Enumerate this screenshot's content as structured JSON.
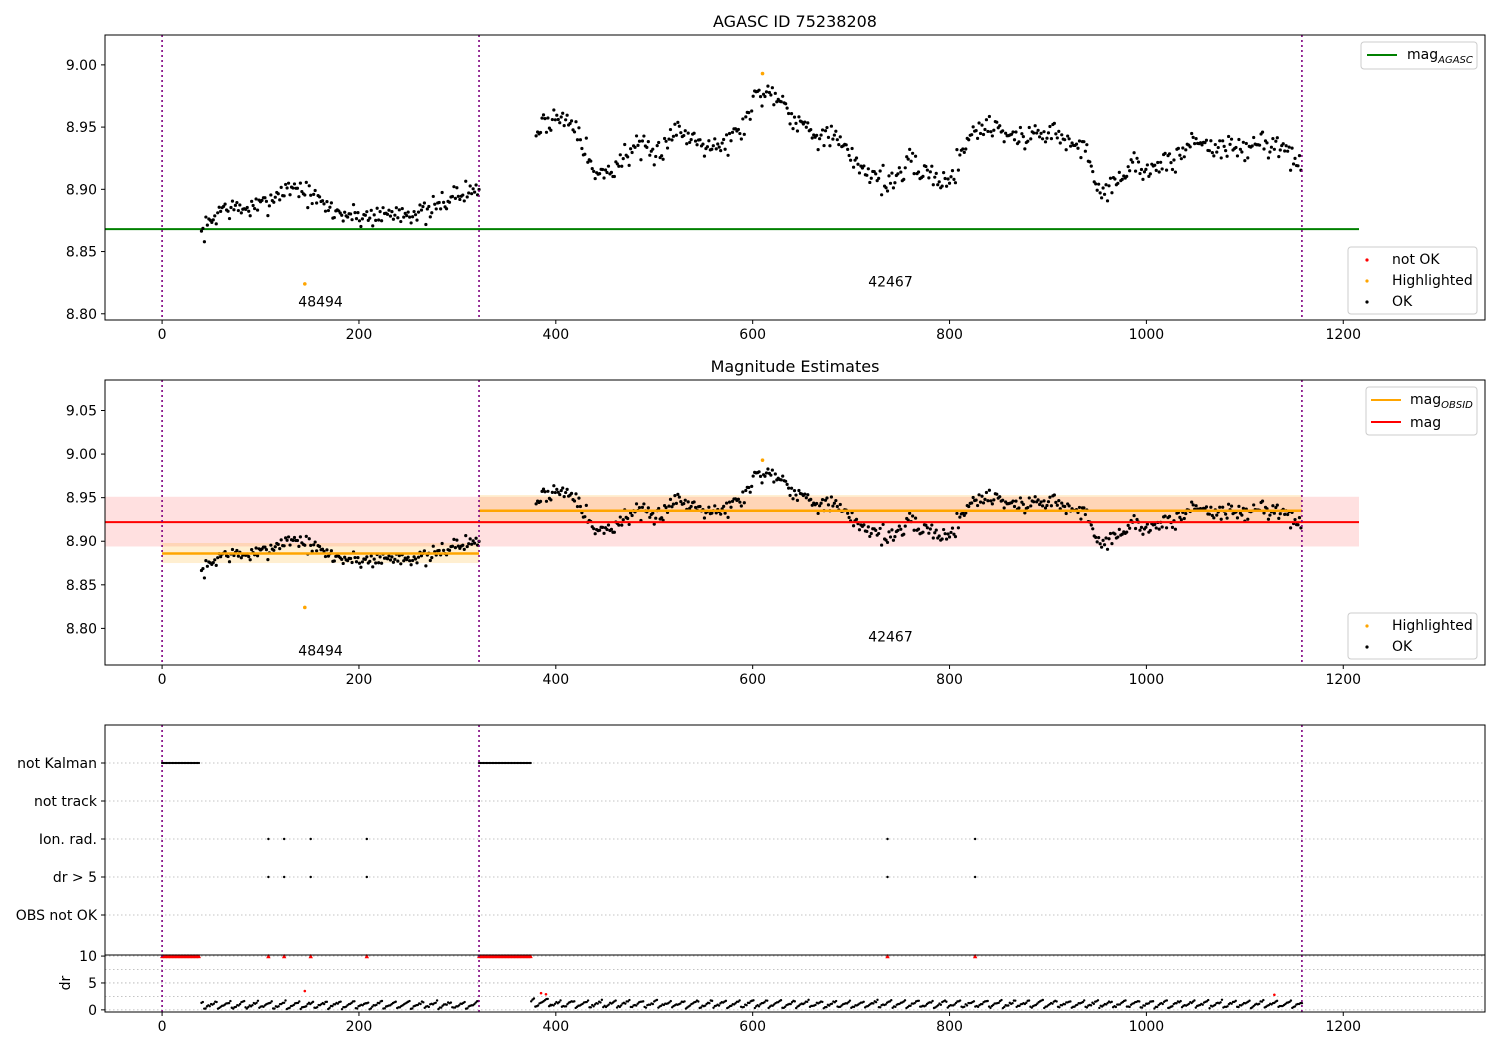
{
  "chart_data": [
    {
      "type": "scatter",
      "title": "AGASC ID 75238208",
      "xlim": [
        -58,
        1344
      ],
      "ylim": [
        8.795,
        9.024
      ],
      "xticks": [
        0,
        200,
        400,
        600,
        800,
        1000,
        1200
      ],
      "yticks": [
        8.8,
        8.85,
        8.9,
        8.95,
        9.0
      ],
      "obs_boundaries": [
        0,
        322,
        1158
      ],
      "obsid_labels": [
        {
          "text": "48494",
          "x": 161,
          "y": 8.806
        },
        {
          "text": "42467",
          "x": 740,
          "y": 8.822
        }
      ],
      "mag_agasc": 8.868,
      "mag_agasc_x": [
        -58,
        1216
      ],
      "highlighted_points": [
        [
          145,
          8.824
        ],
        [
          610,
          8.993
        ]
      ],
      "legend_lines": [
        {
          "label": "mag",
          "subscript": "AGASC",
          "color": "#008000"
        }
      ],
      "legend_points": [
        {
          "label": "not OK",
          "color": "#ff0000"
        },
        {
          "label": "Highlighted",
          "color": "#ffa500"
        },
        {
          "label": "OK",
          "color": "#000000"
        }
      ],
      "ok_segments": [
        {
          "x0": 40,
          "x1": 322,
          "knots": [
            [
              40,
              8.864
            ],
            [
              60,
              8.885
            ],
            [
              80,
              8.884
            ],
            [
              100,
              8.886
            ],
            [
              120,
              8.898
            ],
            [
              135,
              8.903
            ],
            [
              150,
              8.895
            ],
            [
              175,
              8.882
            ],
            [
              200,
              8.878
            ],
            [
              225,
              8.88
            ],
            [
              250,
              8.882
            ],
            [
              270,
              8.88
            ],
            [
              290,
              8.893
            ],
            [
              322,
              8.9
            ]
          ],
          "spread": 0.007
        },
        {
          "x0": 380,
          "x1": 1158,
          "knots": [
            [
              380,
              8.945
            ],
            [
              395,
              8.958
            ],
            [
              420,
              8.955
            ],
            [
              440,
              8.91
            ],
            [
              460,
              8.918
            ],
            [
              480,
              8.935
            ],
            [
              500,
              8.925
            ],
            [
              520,
              8.948
            ],
            [
              545,
              8.94
            ],
            [
              570,
              8.935
            ],
            [
              590,
              8.95
            ],
            [
              605,
              8.978
            ],
            [
              625,
              8.977
            ],
            [
              645,
              8.955
            ],
            [
              665,
              8.945
            ],
            [
              685,
              8.94
            ],
            [
              700,
              8.925
            ],
            [
              720,
              8.913
            ],
            [
              740,
              8.905
            ],
            [
              760,
              8.92
            ],
            [
              780,
              8.912
            ],
            [
              800,
              8.905
            ],
            [
              820,
              8.945
            ],
            [
              845,
              8.952
            ],
            [
              870,
              8.94
            ],
            [
              900,
              8.948
            ],
            [
              920,
              8.938
            ],
            [
              940,
              8.93
            ],
            [
              955,
              8.895
            ],
            [
              970,
              8.91
            ],
            [
              990,
              8.92
            ],
            [
              1010,
              8.915
            ],
            [
              1030,
              8.925
            ],
            [
              1050,
              8.94
            ],
            [
              1075,
              8.933
            ],
            [
              1100,
              8.932
            ],
            [
              1120,
              8.938
            ],
            [
              1140,
              8.935
            ],
            [
              1158,
              8.912
            ]
          ],
          "spread": 0.008
        }
      ]
    },
    {
      "type": "scatter",
      "title": "Magnitude Estimates",
      "xlim": [
        -58,
        1344
      ],
      "ylim": [
        8.758,
        9.085
      ],
      "xticks": [
        0,
        200,
        400,
        600,
        800,
        1000,
        1200
      ],
      "yticks": [
        8.8,
        8.85,
        8.9,
        8.95,
        9.0,
        9.05
      ],
      "obs_boundaries": [
        0,
        322,
        1158
      ],
      "obsid_labels": [
        {
          "text": "48494",
          "x": 161,
          "y": 8.769
        },
        {
          "text": "42467",
          "x": 740,
          "y": 8.785
        }
      ],
      "mag": 8.922,
      "mag_band": [
        8.894,
        8.951
      ],
      "mag_x": [
        -58,
        1216
      ],
      "mag_obsid": [
        {
          "x0": 0,
          "x1": 322,
          "value": 8.886,
          "band": [
            8.875,
            8.898
          ]
        },
        {
          "x0": 322,
          "x1": 1158,
          "value": 8.935,
          "band": [
            8.92,
            8.953
          ]
        }
      ],
      "highlighted_points": [
        [
          145,
          8.824
        ],
        [
          610,
          8.993
        ]
      ],
      "legend_lines": [
        {
          "label": "mag",
          "subscript": "OBSID",
          "color": "#ffa500"
        },
        {
          "label": "mag",
          "subscript": "",
          "color": "#ff0000"
        }
      ],
      "legend_points": [
        {
          "label": "Highlighted",
          "color": "#ffa500"
        },
        {
          "label": "OK",
          "color": "#000000"
        }
      ],
      "ok_points_same_as_panel": 0
    },
    {
      "type": "scatter",
      "title": "",
      "xlim": [
        -58,
        1344
      ],
      "categories": [
        "not Kalman",
        "not track",
        "Ion. rad.",
        "dr > 5",
        "OBS not OK"
      ],
      "flag_runs": [
        {
          "category": "not Kalman",
          "x0": 0,
          "x1": 38
        },
        {
          "category": "not Kalman",
          "x0": 322,
          "x1": 375
        }
      ],
      "flag_points": [
        {
          "category": "Ion. rad.",
          "x": [
            108,
            124,
            151,
            208,
            737,
            826
          ]
        },
        {
          "category": "dr > 5",
          "x": [
            108,
            124,
            151,
            208,
            737,
            826
          ]
        }
      ],
      "obs_boundaries": [
        0,
        322,
        1158
      ]
    },
    {
      "type": "scatter",
      "title": "",
      "ylabel": "dr",
      "xlim": [
        -58,
        1344
      ],
      "ylim": [
        -0.4,
        10.2
      ],
      "xticks": [
        0,
        200,
        400,
        600,
        800,
        1000,
        1200
      ],
      "yticks": [
        0,
        5,
        10
      ],
      "clipped_value": 10,
      "clipped_runs": [
        [
          0,
          38
        ],
        [
          322,
          375
        ]
      ],
      "clipped_points": [
        108,
        124,
        151,
        208,
        737,
        826
      ],
      "red_points": [
        [
          145,
          3.5
        ],
        [
          385,
          3.1
        ],
        [
          390,
          2.9
        ],
        [
          1130,
          2.8
        ]
      ],
      "ok_segments": [
        {
          "x0": 40,
          "x1": 322,
          "base": 0.9
        },
        {
          "x0": 375,
          "x1": 395,
          "base": 1.3
        },
        {
          "x0": 395,
          "x1": 1158,
          "base": 1.1
        }
      ],
      "obs_boundaries": [
        0,
        322,
        1158
      ]
    }
  ]
}
